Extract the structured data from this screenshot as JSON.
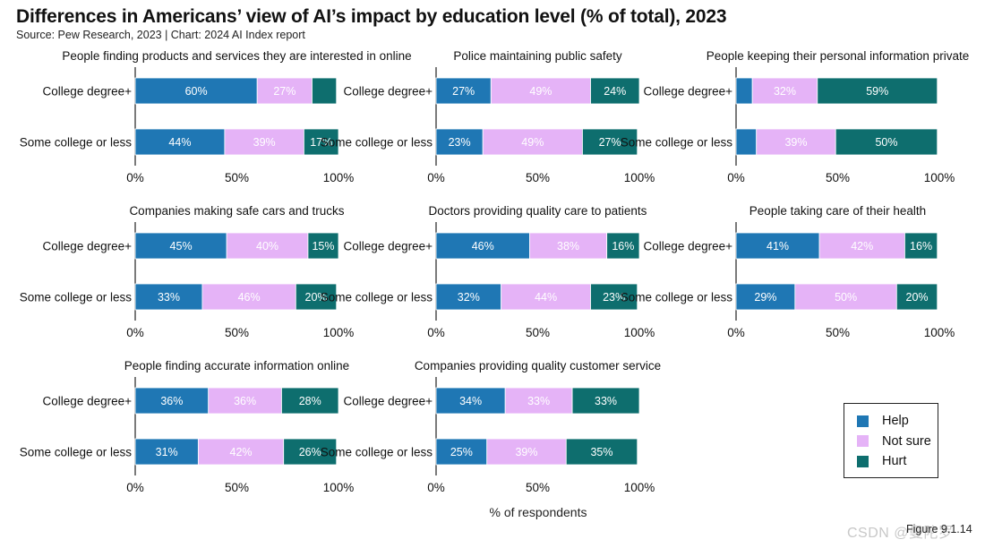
{
  "title": "Differences in Americans’ view of AI’s impact by education level (% of total), 2023",
  "subtitle": "Source: Pew Research, 2023 | Chart: 2024 AI Index report",
  "x_axis_title": "% of respondents",
  "figure_label": "Figure 9.1.14",
  "watermark": "CSDN @曼陀罗",
  "colors": {
    "help": "#1f77b4",
    "not_sure": "#e5b3f7",
    "hurt": "#0e6e6e",
    "axis": "#222222"
  },
  "legend": [
    {
      "key": "help",
      "label": "Help"
    },
    {
      "key": "not_sure",
      "label": "Not sure"
    },
    {
      "key": "hurt",
      "label": "Hurt"
    }
  ],
  "chart_data": [
    {
      "type": "bar",
      "orientation": "horizontal",
      "stacked": true,
      "title": "People finding products and services they are interested in online",
      "categories": [
        "College degree+",
        "Some college or less"
      ],
      "series": [
        {
          "name": "Help",
          "values": [
            60,
            44
          ],
          "labels": [
            "60%",
            "44%"
          ]
        },
        {
          "name": "Not sure",
          "values": [
            27,
            39
          ],
          "labels": [
            "27%",
            "39%"
          ]
        },
        {
          "name": "Hurt",
          "values": [
            12,
            17
          ],
          "labels": [
            "",
            "17%"
          ]
        }
      ],
      "xlim": [
        0,
        100
      ],
      "xticks": [
        "0%",
        "50%",
        "100%"
      ]
    },
    {
      "type": "bar",
      "orientation": "horizontal",
      "stacked": true,
      "title": "Police maintaining public safety",
      "categories": [
        "College degree+",
        "Some college or less"
      ],
      "series": [
        {
          "name": "Help",
          "values": [
            27,
            23
          ],
          "labels": [
            "27%",
            "23%"
          ]
        },
        {
          "name": "Not sure",
          "values": [
            49,
            49
          ],
          "labels": [
            "49%",
            "49%"
          ]
        },
        {
          "name": "Hurt",
          "values": [
            24,
            27
          ],
          "labels": [
            "24%",
            "27%"
          ]
        }
      ],
      "xlim": [
        0,
        100
      ],
      "xticks": [
        "0%",
        "50%",
        "100%"
      ]
    },
    {
      "type": "bar",
      "orientation": "horizontal",
      "stacked": true,
      "title": "People keeping their personal information private",
      "categories": [
        "College degree+",
        "Some college or less"
      ],
      "series": [
        {
          "name": "Help",
          "values": [
            8,
            10
          ],
          "labels": [
            "",
            ""
          ]
        },
        {
          "name": "Not sure",
          "values": [
            32,
            39
          ],
          "labels": [
            "32%",
            "39%"
          ]
        },
        {
          "name": "Hurt",
          "values": [
            59,
            50
          ],
          "labels": [
            "59%",
            "50%"
          ]
        }
      ],
      "xlim": [
        0,
        100
      ],
      "xticks": [
        "0%",
        "50%",
        "100%"
      ]
    },
    {
      "type": "bar",
      "orientation": "horizontal",
      "stacked": true,
      "title": "Companies making safe cars and trucks",
      "categories": [
        "College degree+",
        "Some college or less"
      ],
      "series": [
        {
          "name": "Help",
          "values": [
            45,
            33
          ],
          "labels": [
            "45%",
            "33%"
          ]
        },
        {
          "name": "Not sure",
          "values": [
            40,
            46
          ],
          "labels": [
            "40%",
            "46%"
          ]
        },
        {
          "name": "Hurt",
          "values": [
            15,
            20
          ],
          "labels": [
            "15%",
            "20%"
          ]
        }
      ],
      "xlim": [
        0,
        100
      ],
      "xticks": [
        "0%",
        "50%",
        "100%"
      ]
    },
    {
      "type": "bar",
      "orientation": "horizontal",
      "stacked": true,
      "title": "Doctors providing quality care to patients",
      "categories": [
        "College degree+",
        "Some college or less"
      ],
      "series": [
        {
          "name": "Help",
          "values": [
            46,
            32
          ],
          "labels": [
            "46%",
            "32%"
          ]
        },
        {
          "name": "Not sure",
          "values": [
            38,
            44
          ],
          "labels": [
            "38%",
            "44%"
          ]
        },
        {
          "name": "Hurt",
          "values": [
            16,
            23
          ],
          "labels": [
            "16%",
            "23%"
          ]
        }
      ],
      "xlim": [
        0,
        100
      ],
      "xticks": [
        "0%",
        "50%",
        "100%"
      ]
    },
    {
      "type": "bar",
      "orientation": "horizontal",
      "stacked": true,
      "title": "People taking care of their health",
      "categories": [
        "College degree+",
        "Some college or less"
      ],
      "series": [
        {
          "name": "Help",
          "values": [
            41,
            29
          ],
          "labels": [
            "41%",
            "29%"
          ]
        },
        {
          "name": "Not sure",
          "values": [
            42,
            50
          ],
          "labels": [
            "42%",
            "50%"
          ]
        },
        {
          "name": "Hurt",
          "values": [
            16,
            20
          ],
          "labels": [
            "16%",
            "20%"
          ]
        }
      ],
      "xlim": [
        0,
        100
      ],
      "xticks": [
        "0%",
        "50%",
        "100%"
      ]
    },
    {
      "type": "bar",
      "orientation": "horizontal",
      "stacked": true,
      "title": "People finding accurate information online",
      "categories": [
        "College degree+",
        "Some college or less"
      ],
      "series": [
        {
          "name": "Help",
          "values": [
            36,
            31
          ],
          "labels": [
            "36%",
            "31%"
          ]
        },
        {
          "name": "Not sure",
          "values": [
            36,
            42
          ],
          "labels": [
            "36%",
            "42%"
          ]
        },
        {
          "name": "Hurt",
          "values": [
            28,
            26
          ],
          "labels": [
            "28%",
            "26%"
          ]
        }
      ],
      "xlim": [
        0,
        100
      ],
      "xticks": [
        "0%",
        "50%",
        "100%"
      ]
    },
    {
      "type": "bar",
      "orientation": "horizontal",
      "stacked": true,
      "title": "Companies providing quality customer service",
      "categories": [
        "College degree+",
        "Some college or less"
      ],
      "series": [
        {
          "name": "Help",
          "values": [
            34,
            25
          ],
          "labels": [
            "34%",
            "25%"
          ]
        },
        {
          "name": "Not sure",
          "values": [
            33,
            39
          ],
          "labels": [
            "33%",
            "39%"
          ]
        },
        {
          "name": "Hurt",
          "values": [
            33,
            35
          ],
          "labels": [
            "33%",
            "35%"
          ]
        }
      ],
      "xlim": [
        0,
        100
      ],
      "xticks": [
        "0%",
        "50%",
        "100%"
      ]
    }
  ]
}
